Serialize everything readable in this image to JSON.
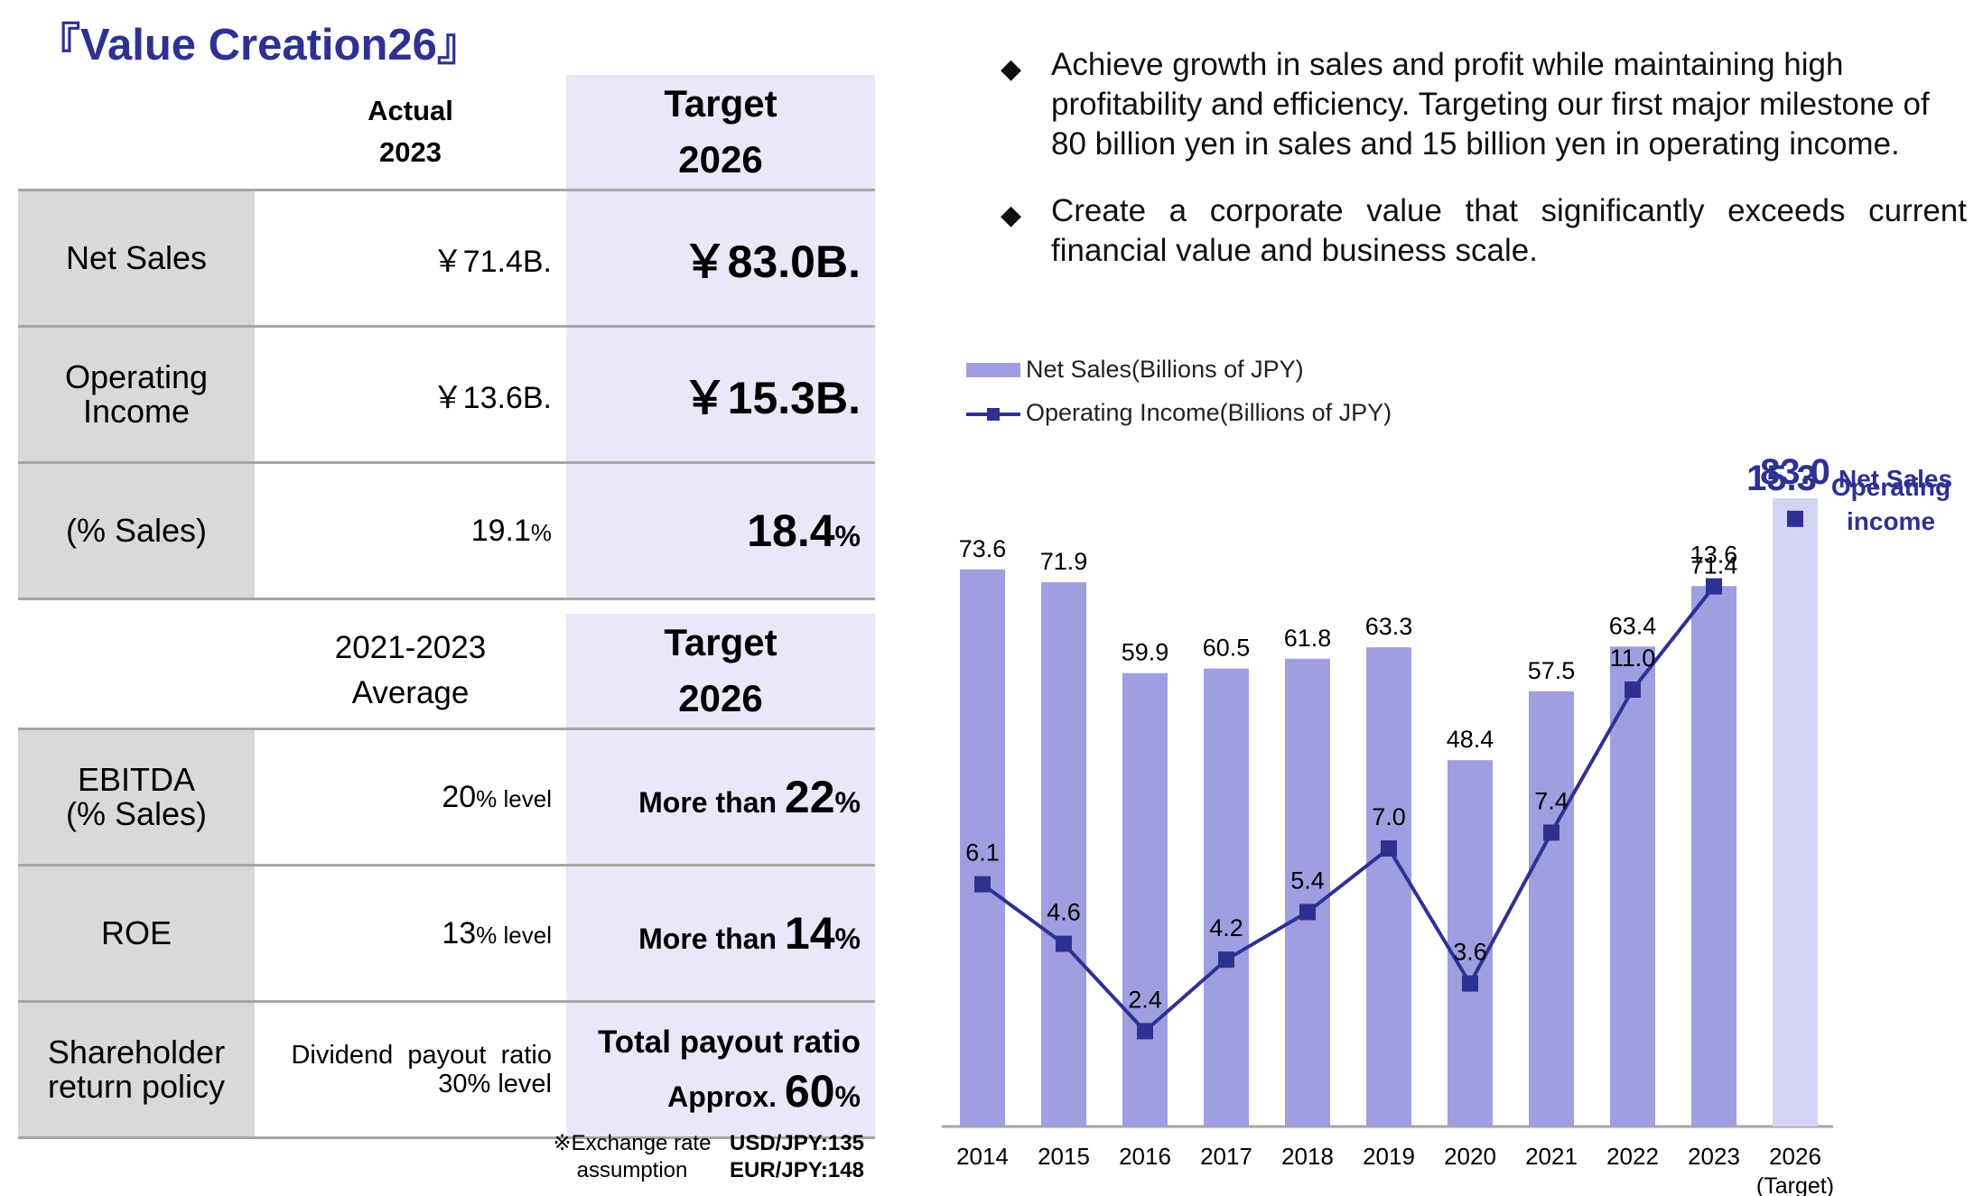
{
  "title": "『Value Creation26』",
  "colors": {
    "brand": "#2e3192",
    "bar": "#9e9ee0",
    "bar_target": "#d4d4f4",
    "target_bg": "#e8e8f8",
    "label_bg": "#d9d9d9"
  },
  "table1": {
    "header_actual": [
      "Actual",
      "2023"
    ],
    "header_target": [
      "Target",
      "2026"
    ],
    "rows": [
      {
        "label": [
          "Net Sales"
        ],
        "actual": "￥71.4B.",
        "target": "￥83.0B."
      },
      {
        "label": [
          "Operating",
          "Income"
        ],
        "actual": "￥13.6B.",
        "target": "￥15.3B."
      },
      {
        "label": [
          "(% Sales)"
        ],
        "actual_num": "19.1",
        "actual_unit": "%",
        "target_num": "18.4",
        "target_unit": "%"
      }
    ]
  },
  "table2": {
    "header_actual": [
      "2021-2023",
      "Average"
    ],
    "header_target": [
      "Target",
      "2026"
    ],
    "rows": [
      {
        "label": [
          "EBITDA",
          "(% Sales)"
        ],
        "actual_num": "20",
        "actual_unit": "% level",
        "target_prefix": "More than ",
        "target_num": "22",
        "target_unit": "%"
      },
      {
        "label": [
          "ROE"
        ],
        "actual_num": "13",
        "actual_unit": "% level",
        "target_prefix": "More than ",
        "target_num": "14",
        "target_unit": "%"
      },
      {
        "label": [
          "Shareholder",
          "return policy"
        ],
        "actual_lines": [
          "Dividend  payout  ratio",
          "30% level"
        ],
        "target_line1": "Total payout ratio",
        "target_prefix": "Approx. ",
        "target_num": "60",
        "target_unit": "%"
      }
    ]
  },
  "fx_note": {
    "label": [
      "※Exchange rate",
      "assumption"
    ],
    "values": [
      "USD/JPY:135",
      "EUR/JPY:148"
    ]
  },
  "bullets": [
    "Achieve growth in sales and profit while maintaining high profitability and efficiency. Targeting our first major milestone of 80 billion yen in sales and 15 billion yen in operating income.",
    "Create a corporate value that significantly exceeds current financial value and business scale."
  ],
  "bullet_symbol": "◆",
  "chart_data": {
    "type": "bar",
    "categories": [
      "2014",
      "2015",
      "2016",
      "2017",
      "2018",
      "2019",
      "2020",
      "2021",
      "2022",
      "2023",
      "2026"
    ],
    "category_sublabel": {
      "2026": "(Target)"
    },
    "series": [
      {
        "name": "Net Sales(Billions of JPY)",
        "type": "bar",
        "values": [
          73.6,
          71.9,
          59.9,
          60.5,
          61.8,
          63.3,
          48.4,
          57.5,
          63.4,
          71.4,
          83.0
        ]
      },
      {
        "name": "Operating Income(Billions of JPY)",
        "type": "line",
        "values": [
          6.1,
          4.6,
          2.4,
          4.2,
          5.4,
          7.0,
          3.6,
          7.4,
          11.0,
          13.6,
          15.3
        ]
      }
    ],
    "target_annotations": {
      "net_sales_label": "Net Sales",
      "operating_income_label": [
        "Operating",
        "income"
      ]
    },
    "legend_position": "top-left",
    "grid": false
  }
}
